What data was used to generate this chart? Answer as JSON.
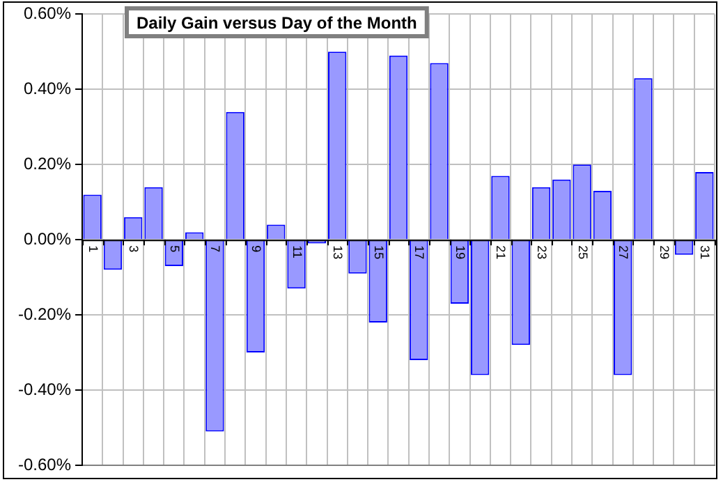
{
  "chart_data": {
    "type": "bar",
    "title": "Daily Gain versus Day of the Month",
    "categories": [
      "1",
      null,
      "3",
      null,
      "5",
      null,
      "7",
      null,
      "9",
      null,
      "11",
      null,
      "13",
      null,
      "15",
      null,
      "17",
      null,
      "19",
      null,
      "21",
      null,
      "23",
      null,
      "25",
      null,
      "27",
      null,
      "29",
      null,
      "31"
    ],
    "values": [
      0.12,
      -0.08,
      0.06,
      0.14,
      -0.07,
      0.02,
      -0.51,
      0.34,
      -0.3,
      0.04,
      -0.13,
      -0.01,
      0.5,
      -0.09,
      -0.22,
      0.49,
      -0.32,
      0.47,
      -0.17,
      -0.36,
      0.17,
      -0.28,
      0.14,
      0.16,
      0.2,
      0.13,
      -0.36,
      0.43,
      0,
      -0.04,
      0.18
    ],
    "color": "#9999ff",
    "ylim": [
      -0.6,
      0.6
    ],
    "yticks": [
      {
        "value": -0.6,
        "label": "-0.60%"
      },
      {
        "value": -0.4,
        "label": "-0.40%"
      },
      {
        "value": -0.2,
        "label": "-0.20%"
      },
      {
        "value": 0,
        "label": "0.00%"
      },
      {
        "value": 0.2,
        "label": "0.20%"
      },
      {
        "value": 0.4,
        "label": "0.40%"
      },
      {
        "value": 0.6,
        "label": "0.60%"
      }
    ],
    "grid": true,
    "legend": false
  }
}
